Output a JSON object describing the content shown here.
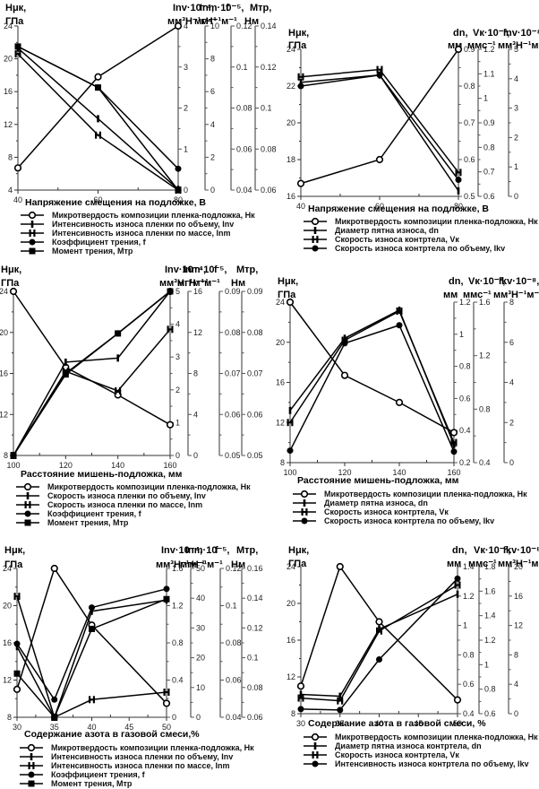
{
  "chart_data": [
    {
      "type": "line",
      "id": "p1",
      "xlabel": "Напряжение смещения на подложке, В",
      "x": [
        40,
        60,
        80
      ],
      "xlim": [
        40,
        80
      ],
      "xticks": [
        40,
        60,
        80
      ],
      "left_axis": {
        "label1": "Hμк,",
        "label2": "ГПа",
        "ylim": [
          4,
          24
        ],
        "ticks": [
          4,
          8,
          12,
          16,
          20,
          24
        ]
      },
      "right_axes": [
        {
          "label1": "Inv·10⁻⁴,",
          "label2": "мм³Н⁻¹м⁻¹",
          "ylim": [
            0,
            4
          ],
          "ticks": [
            0,
            1,
            2,
            3,
            4
          ]
        },
        {
          "label1": "Inm·10⁻⁵,",
          "label2": "мгН⁻¹м⁻¹",
          "ylim": [
            0,
            10
          ],
          "ticks": [
            0,
            2,
            4,
            6,
            8,
            10
          ]
        },
        {
          "label1": "f",
          "label2": "",
          "ylim": [
            0.04,
            0.12
          ],
          "ticks": [
            0.04,
            0.06,
            0.08,
            0.1,
            0.12
          ]
        },
        {
          "label1": "Мтр,",
          "label2": "Нм",
          "ylim": [
            0.06,
            0.14
          ],
          "ticks": [
            0.06,
            0.08,
            0.1,
            0.12,
            0.14
          ]
        }
      ],
      "series": [
        {
          "name": "Микротвердость композиции пленка-подложка, Нк",
          "marker": "circle-open",
          "values": [
            6.7,
            17.8,
            24
          ]
        },
        {
          "name": "Интенсивность износа пленки по объему, Inv",
          "marker": "bar",
          "values": [
            21.3,
            12.7,
            4.1
          ]
        },
        {
          "name": "Интенсивность износа пленки по массе, Inm",
          "marker": "H",
          "values": [
            20.6,
            10.7,
            4.0
          ]
        },
        {
          "name": "Коэффициент трения, f",
          "marker": "circle-filled",
          "values": [
            21.5,
            16.5,
            6.6
          ]
        },
        {
          "name": "Момент трения, Мтр",
          "marker": "square",
          "values": [
            21.5,
            16.5,
            4.0
          ]
        }
      ]
    },
    {
      "type": "line",
      "id": "p2",
      "xlabel": "Напряжение смещения на подложке, В",
      "x": [
        40,
        60,
        80
      ],
      "xlim": [
        40,
        80
      ],
      "xticks": [
        40,
        60,
        80
      ],
      "left_axis": {
        "label1": "Hμк,",
        "label2": "ГПа",
        "ylim": [
          16,
          24
        ],
        "ticks": [
          16,
          18,
          20,
          22,
          24
        ]
      },
      "right_axes": [
        {
          "label1": "dn,",
          "label2": "мм",
          "ylim": [
            0.5,
            0.9
          ],
          "ticks": [
            0.5,
            0.6,
            0.7,
            0.8,
            0.9
          ]
        },
        {
          "label1": "Vк·10⁻³,",
          "label2": "ммс⁻¹",
          "ylim": [
            0.6,
            1.2
          ],
          "ticks": [
            0.6,
            0.7,
            0.8,
            0.9,
            1,
            1.1,
            1.2
          ]
        },
        {
          "label1": "Inv·10⁻⁸,",
          "label2": "мм³Н⁻¹м⁻¹",
          "ylim": [
            0,
            5
          ],
          "ticks": [
            0,
            1,
            2,
            3,
            4,
            5
          ]
        }
      ],
      "series": [
        {
          "name": "Микротвердость композиции пленка-подложка, Нк",
          "marker": "circle-open",
          "values": [
            16.7,
            18,
            24
          ]
        },
        {
          "name": "Диаметр пятна износа, dn",
          "marker": "bar",
          "values": [
            22.2,
            22.6,
            16.3
          ]
        },
        {
          "name": "Скорость износа контртела, Vк",
          "marker": "H",
          "values": [
            22.5,
            22.9,
            17.3
          ]
        },
        {
          "name": "Скорость износа контртела по объему, Ikv",
          "marker": "circle-filled",
          "values": [
            22.0,
            22.6,
            16.9
          ]
        }
      ]
    },
    {
      "type": "line",
      "id": "p3",
      "xlabel": "Расстояние мишень-подложка, мм",
      "x": [
        100,
        120,
        140,
        160
      ],
      "xlim": [
        100,
        160
      ],
      "xticks": [
        100,
        120,
        140,
        160
      ],
      "left_axis": {
        "label1": "Hμк,",
        "label2": "ГПа",
        "ylim": [
          8,
          24
        ],
        "ticks": [
          8,
          12,
          16,
          20,
          24
        ]
      },
      "right_axes": [
        {
          "label1": "Inv·10⁻⁴,",
          "label2": "мм³Н⁻¹м⁻¹",
          "ylim": [
            0,
            5
          ],
          "ticks": [
            0,
            1,
            2,
            3,
            4,
            5
          ]
        },
        {
          "label1": "Inm·10⁻⁵,",
          "label2": "мгН⁻¹м⁻¹",
          "ylim": [
            0,
            16
          ],
          "ticks": [
            0,
            4,
            8,
            12,
            16
          ]
        },
        {
          "label1": "f",
          "label2": "",
          "ylim": [
            0.05,
            0.09
          ],
          "ticks": [
            0.05,
            0.06,
            0.07,
            0.08,
            0.09
          ]
        },
        {
          "label1": "Мтр,",
          "label2": "Нм",
          "ylim": [
            0.05,
            0.09
          ],
          "ticks": [
            0.05,
            0.06,
            0.07,
            0.08,
            0.09
          ]
        }
      ],
      "series": [
        {
          "name": "Микротвердость композиции пленка-подложка, Нк",
          "marker": "circle-open",
          "values": [
            24,
            16.6,
            13.9,
            11
          ]
        },
        {
          "name": "Скорость износа пленки по объему, Inv",
          "marker": "bar",
          "values": [
            8,
            17.1,
            17.5,
            24
          ]
        },
        {
          "name": "Скорость износа пленки по массе, Inm",
          "marker": "H",
          "values": [
            8,
            16.2,
            14.3,
            20.3
          ]
        },
        {
          "name": "Коэффициент трения, f",
          "marker": "circle-filled",
          "values": [
            8,
            16.0,
            19.9,
            24
          ]
        },
        {
          "name": "Момент трения, Мтр",
          "marker": "square",
          "values": [
            8,
            15.9,
            19.9,
            24
          ]
        }
      ]
    },
    {
      "type": "line",
      "id": "p4",
      "xlabel": "Расстояние мишень-подложка, мм",
      "x": [
        100,
        120,
        140,
        160
      ],
      "xlim": [
        100,
        160
      ],
      "xticks": [
        100,
        120,
        140,
        160
      ],
      "left_axis": {
        "label1": "Hμк,",
        "label2": "ГПа",
        "ylim": [
          8,
          24
        ],
        "ticks": [
          8,
          12,
          16,
          20,
          24
        ]
      },
      "right_axes": [
        {
          "label1": "dn,",
          "label2": "мм",
          "ylim": [
            0.2,
            1.2
          ],
          "ticks": [
            0.2,
            0.4,
            0.6,
            0.8,
            1,
            1.2
          ]
        },
        {
          "label1": "Vк·10⁻³,",
          "label2": "ммс⁻¹",
          "ylim": [
            0.4,
            1.6
          ],
          "ticks": [
            0.4,
            0.8,
            1.2,
            1.6
          ]
        },
        {
          "label1": "Ikv·10⁻⁸,",
          "label2": "мм³Н⁻¹м⁻¹",
          "ylim": [
            0,
            8
          ],
          "ticks": [
            0,
            2,
            4,
            6,
            8
          ]
        }
      ],
      "series": [
        {
          "name": "Микротвердость композиции пленка-подложка, Нк",
          "marker": "circle-open",
          "values": [
            24,
            16.7,
            14,
            11
          ]
        },
        {
          "name": "Диаметр пятна износа, dn",
          "marker": "bar",
          "values": [
            13.2,
            20.4,
            23.2,
            9.8
          ]
        },
        {
          "name": "Скорость износа контртела, Vк",
          "marker": "H",
          "values": [
            12,
            20.2,
            23.1,
            10
          ]
        },
        {
          "name": "Скорость износа контртела по объему, Ikv",
          "marker": "circle-filled",
          "values": [
            9.2,
            19.9,
            21.7,
            9.1
          ]
        }
      ]
    },
    {
      "type": "line",
      "id": "p5",
      "xlabel": "Содержание азота в газовой смеси,%",
      "x": [
        30,
        35,
        40,
        50
      ],
      "xlim": [
        30,
        50
      ],
      "xticks": [
        30,
        35,
        40,
        45,
        50
      ],
      "left_axis": {
        "label1": "Hμк,",
        "label2": "ГПа",
        "ylim": [
          8,
          24
        ],
        "ticks": [
          8,
          12,
          16,
          20,
          24
        ]
      },
      "right_axes": [
        {
          "label1": "Inv·10⁻⁴,",
          "label2": "мм³Н⁻¹м⁻¹",
          "ylim": [
            0,
            1.6
          ],
          "ticks": [
            0,
            0.4,
            0.8,
            1.2,
            1.6
          ]
        },
        {
          "label1": "Inm·10⁻⁵,",
          "label2": "мгН⁻¹м⁻¹",
          "ylim": [
            0,
            50
          ],
          "ticks": [
            0,
            10,
            20,
            30,
            40,
            50
          ]
        },
        {
          "label1": "f",
          "label2": "",
          "ylim": [
            0.04,
            0.12
          ],
          "ticks": [
            0.04,
            0.06,
            0.08,
            0.1,
            0.12
          ]
        },
        {
          "label1": "Мтр,",
          "label2": "Нм",
          "ylim": [
            0.06,
            0.16
          ],
          "ticks": [
            0.06,
            0.08,
            0.1,
            0.12,
            0.14,
            0.16
          ]
        }
      ],
      "series": [
        {
          "name": "Микротвердость композиции пленка-подложка, Нк",
          "marker": "circle-open",
          "values": [
            11,
            24,
            17.9,
            9.5
          ]
        },
        {
          "name": "Интенсивность износа пленки по объему, Inv",
          "marker": "bar",
          "values": [
            15.6,
            8.0,
            19.4,
            20.6
          ]
        },
        {
          "name": "Интенсивность износа пленки по массе, Inm",
          "marker": "H",
          "values": [
            21,
            8.0,
            9.9,
            10.7
          ]
        },
        {
          "name": "Коэффициент трения, f",
          "marker": "circle-filled",
          "values": [
            15.9,
            9.9,
            19.8,
            21.8
          ]
        },
        {
          "name": "Момент трения, Мтр",
          "marker": "square",
          "values": [
            12.7,
            8.0,
            17.5,
            20.7
          ]
        }
      ]
    },
    {
      "type": "line",
      "id": "p6",
      "xlabel": "Содержание азота в газовой смеси, %",
      "x": [
        30,
        35,
        40,
        50
      ],
      "xlim": [
        30,
        50
      ],
      "xticks": [
        30,
        35,
        40,
        45,
        50
      ],
      "left_axis": {
        "label1": "Hμк,",
        "label2": "ГПа",
        "ylim": [
          8,
          24
        ],
        "ticks": [
          8,
          12,
          16,
          20,
          24
        ]
      },
      "right_axes": [
        {
          "label1": "dn,",
          "label2": "мм",
          "ylim": [
            0.4,
            1.4
          ],
          "ticks": [
            0.4,
            0.6,
            0.8,
            1,
            1.2,
            1.4
          ]
        },
        {
          "label1": "Vк·10⁻³,",
          "label2": "ммс⁻¹",
          "ylim": [
            0.6,
            1.8
          ],
          "ticks": [
            0.6,
            0.8,
            1,
            1.2,
            1.4,
            1.6,
            1.8
          ]
        },
        {
          "label1": "Ikv·10⁻⁸,",
          "label2": "мм³Н⁻¹м⁻¹",
          "ylim": [
            0,
            20
          ],
          "ticks": [
            0,
            4,
            8,
            12,
            16,
            20
          ]
        }
      ],
      "series": [
        {
          "name": "Микротвердость композиции пленка-подложка, Нк",
          "marker": "circle-open",
          "values": [
            11,
            24,
            18,
            9.5
          ]
        },
        {
          "name": "Диаметр пятна износа контртела, dn",
          "marker": "bar",
          "values": [
            10.1,
            9.9,
            17.2,
            21.0
          ]
        },
        {
          "name": "Скорость износа контртела, Vк",
          "marker": "H",
          "values": [
            9.7,
            9.4,
            17.0,
            22.0
          ]
        },
        {
          "name": "Интенсивность износа контртела по объему, Ikv",
          "marker": "circle-filled",
          "values": [
            8.5,
            8.4,
            13.9,
            22.7
          ]
        }
      ]
    }
  ]
}
